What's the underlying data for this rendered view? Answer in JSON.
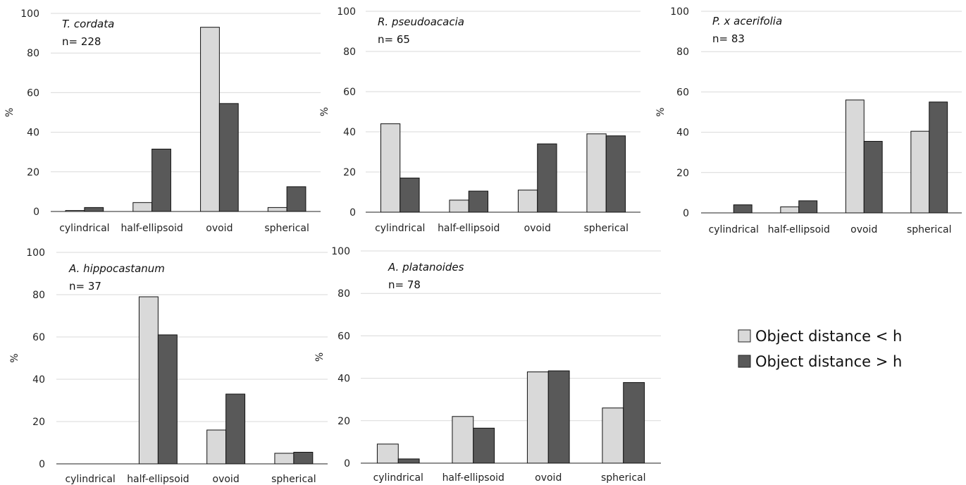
{
  "colors": {
    "light": "#d9d9d9",
    "dark": "#595959"
  },
  "legend": [
    {
      "label": "Object distance < h",
      "color": "#d9d9d9"
    },
    {
      "label": "Object distance > h",
      "color": "#595959"
    }
  ],
  "chart_data": [
    {
      "type": "bar",
      "title": "T. cordata",
      "n_label": "n= 228",
      "ylabel": "%",
      "ylim": [
        0,
        100
      ],
      "yticks": [
        "0",
        "20",
        "40",
        "60",
        "80",
        "100"
      ],
      "categories": [
        "cylindrical",
        "half-ellipsoid",
        "ovoid",
        "spherical"
      ],
      "series": [
        {
          "name": "Object distance < h",
          "values": [
            0.5,
            4.5,
            93,
            2
          ]
        },
        {
          "name": "Object distance > h",
          "values": [
            2,
            31.5,
            54.5,
            12.5
          ]
        }
      ]
    },
    {
      "type": "bar",
      "title": "R. pseudoacacia",
      "n_label": "n= 65",
      "ylabel": "%",
      "ylim": [
        0,
        100
      ],
      "yticks": [
        "0",
        "20",
        "40",
        "60",
        "80",
        "100"
      ],
      "categories": [
        "cylindrical",
        "half-ellipsoid",
        "ovoid",
        "spherical"
      ],
      "series": [
        {
          "name": "Object distance < h",
          "values": [
            44,
            6,
            11,
            39
          ]
        },
        {
          "name": "Object distance > h",
          "values": [
            17,
            10.5,
            34,
            38
          ]
        }
      ]
    },
    {
      "type": "bar",
      "title": "P.  x acerifolia",
      "n_label": "n= 83",
      "ylabel": "%",
      "ylim": [
        0,
        100
      ],
      "yticks": [
        "0",
        "20",
        "40",
        "60",
        "80",
        "100"
      ],
      "categories": [
        "cylindrical",
        "half-ellipsoid",
        "ovoid",
        "spherical"
      ],
      "series": [
        {
          "name": "Object distance < h",
          "values": [
            0,
            3,
            56,
            40.5
          ]
        },
        {
          "name": "Object distance > h",
          "values": [
            4,
            6,
            35.5,
            55
          ]
        }
      ]
    },
    {
      "type": "bar",
      "title": "A. hippocastanum",
      "n_label": "n= 37",
      "ylabel": "%",
      "ylim": [
        0,
        100
      ],
      "yticks": [
        "0",
        "20",
        "40",
        "60",
        "80",
        "100"
      ],
      "categories": [
        "cylindrical",
        "half-ellipsoid",
        "ovoid",
        "spherical"
      ],
      "series": [
        {
          "name": "Object distance < h",
          "values": [
            0,
            79,
            16,
            5
          ]
        },
        {
          "name": "Object distance > h",
          "values": [
            0,
            61,
            33,
            5.5
          ]
        }
      ]
    },
    {
      "type": "bar",
      "title": "A. platanoides",
      "n_label": "n=  78",
      "ylabel": "%",
      "ylim": [
        0,
        100
      ],
      "yticks": [
        "0",
        "20",
        "40",
        "60",
        "80",
        "100"
      ],
      "categories": [
        "cylindrical",
        "half-ellipsoid",
        "ovoid",
        "spherical"
      ],
      "series": [
        {
          "name": "Object distance < h",
          "values": [
            9,
            22,
            43,
            26
          ]
        },
        {
          "name": "Object distance > h",
          "values": [
            2,
            16.5,
            43.5,
            38
          ]
        }
      ]
    }
  ]
}
